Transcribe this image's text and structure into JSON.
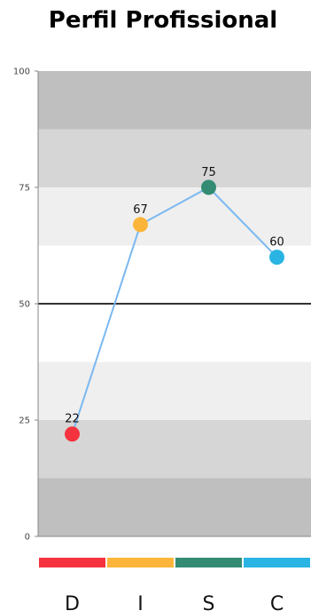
{
  "title": "Perfil Profissional",
  "chart_data": {
    "type": "line",
    "title": "Perfil Profissional",
    "categories": [
      "D",
      "I",
      "S",
      "C"
    ],
    "values": [
      22,
      67,
      75,
      60
    ],
    "point_colors": [
      "#f5333f",
      "#fcb53b",
      "#338b73",
      "#2ab4e3"
    ],
    "line_color": "#7ab8f0",
    "ylim": [
      0,
      100
    ],
    "yticks": [
      0,
      25,
      50,
      75,
      100
    ],
    "midline": 50,
    "bands": [
      {
        "from": 0,
        "to": 12.5,
        "color": "#bfbfbf"
      },
      {
        "from": 12.5,
        "to": 25,
        "color": "#d6d6d6"
      },
      {
        "from": 25,
        "to": 37.5,
        "color": "#efefef"
      },
      {
        "from": 37.5,
        "to": 62.5,
        "color": "#ffffff"
      },
      {
        "from": 62.5,
        "to": 75,
        "color": "#efefef"
      },
      {
        "from": 75,
        "to": 87.5,
        "color": "#d6d6d6"
      },
      {
        "from": 87.5,
        "to": 100,
        "color": "#bfbfbf"
      }
    ],
    "grid": false,
    "legend": "none"
  }
}
